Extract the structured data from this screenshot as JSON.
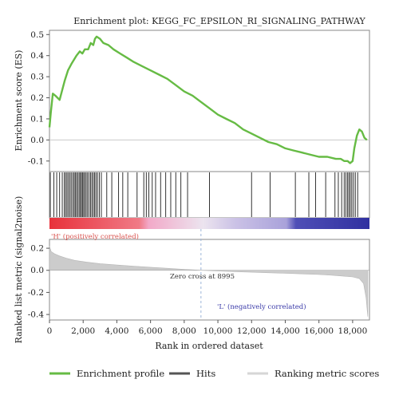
{
  "chart_data": {
    "type": "line",
    "title": "Enrichment plot: KEGG_FC_EPSILON_RI_SIGNALING_PATHWAY",
    "xlabel": "Rank in ordered dataset",
    "xlim": [
      0,
      19000
    ],
    "xticks": [
      "0",
      "2,000",
      "4,000",
      "6,000",
      "8,000",
      "10,000",
      "12,000",
      "14,000",
      "16,000",
      "18,000"
    ],
    "xtick_values": [
      0,
      2000,
      4000,
      6000,
      8000,
      10000,
      12000,
      14000,
      16000,
      18000
    ],
    "es": {
      "ylabel": "Enrichment score (ES)",
      "ylim": [
        -0.15,
        0.52
      ],
      "yticks": [
        "0.5",
        "0.4",
        "0.3",
        "0.2",
        "0.1",
        "0.0",
        "-0.1"
      ],
      "ytick_values": [
        0.5,
        0.4,
        0.3,
        0.2,
        0.1,
        0.0,
        -0.1
      ],
      "color": "#66bb44",
      "x": [
        0,
        80,
        200,
        350,
        600,
        800,
        900,
        1100,
        1300,
        1450,
        1600,
        1800,
        1950,
        2100,
        2300,
        2450,
        2600,
        2700,
        2800,
        3000,
        3200,
        3500,
        3800,
        4200,
        4600,
        5000,
        5500,
        6000,
        6500,
        7000,
        7500,
        8000,
        8500,
        9000,
        9500,
        10000,
        10500,
        11000,
        11500,
        12000,
        12500,
        13000,
        13500,
        14000,
        14500,
        15000,
        15500,
        16000,
        16500,
        17000,
        17300,
        17500,
        17700,
        17850,
        18000,
        18100,
        18250,
        18400,
        18550,
        18700,
        18850
      ],
      "y": [
        0.06,
        0.13,
        0.22,
        0.21,
        0.19,
        0.25,
        0.28,
        0.33,
        0.36,
        0.38,
        0.4,
        0.42,
        0.41,
        0.43,
        0.43,
        0.46,
        0.45,
        0.48,
        0.49,
        0.48,
        0.46,
        0.45,
        0.43,
        0.41,
        0.39,
        0.37,
        0.35,
        0.33,
        0.31,
        0.29,
        0.26,
        0.23,
        0.21,
        0.18,
        0.15,
        0.12,
        0.1,
        0.08,
        0.05,
        0.03,
        0.01,
        -0.01,
        -0.02,
        -0.04,
        -0.05,
        -0.06,
        -0.07,
        -0.08,
        -0.08,
        -0.09,
        -0.09,
        -0.1,
        -0.1,
        -0.11,
        -0.1,
        -0.04,
        0.02,
        0.05,
        0.04,
        0.01,
        0.0
      ]
    },
    "hits": [
      50,
      260,
      430,
      600,
      760,
      880,
      960,
      1040,
      1120,
      1210,
      1290,
      1380,
      1460,
      1530,
      1600,
      1680,
      1760,
      1830,
      1900,
      1960,
      2030,
      2100,
      2180,
      2260,
      2350,
      2440,
      2520,
      2600,
      2680,
      2760,
      2850,
      2960,
      3080,
      3400,
      3700,
      4100,
      4350,
      4650,
      5200,
      5600,
      5750,
      5900,
      6100,
      6300,
      6600,
      6900,
      7200,
      7500,
      7800,
      8200,
      9500,
      12000,
      13100,
      14600,
      15400,
      15800,
      16400,
      16950,
      17150,
      17350,
      17500,
      17600,
      17700,
      17780,
      17860,
      17950,
      18050,
      18160,
      18300
    ],
    "labels": {
      "positive": "'H' (positively correlated)",
      "negative": "'L' (negatively correlated)",
      "zero_cross": "Zero cross at 8995"
    },
    "metric": {
      "ylabel": "Ranked list metric (signal2noise)",
      "ylim": [
        -0.45,
        0.28
      ],
      "yticks": [
        "0.2",
        "0.0",
        "-0.2",
        "-0.4"
      ],
      "ytick_values": [
        0.2,
        0.0,
        -0.2,
        -0.4
      ],
      "x": [
        0,
        100,
        300,
        600,
        1000,
        1500,
        2200,
        3000,
        4000,
        5000,
        6000,
        7000,
        8000,
        8995,
        10000,
        11000,
        12000,
        13000,
        14000,
        15000,
        16000,
        16800,
        17400,
        18000,
        18400,
        18650,
        18800,
        18900
      ],
      "y": [
        0.22,
        0.17,
        0.15,
        0.13,
        0.11,
        0.09,
        0.075,
        0.06,
        0.048,
        0.038,
        0.028,
        0.018,
        0.009,
        0.0,
        -0.006,
        -0.012,
        -0.017,
        -0.022,
        -0.027,
        -0.032,
        -0.038,
        -0.045,
        -0.052,
        -0.06,
        -0.075,
        -0.12,
        -0.25,
        -0.42
      ]
    },
    "legend": [
      {
        "name": "Enrichment profile",
        "color": "#66bb44",
        "kind": "line"
      },
      {
        "name": "Hits",
        "color": "#555555",
        "kind": "line"
      },
      {
        "name": "Ranking metric scores",
        "color": "#d6d6d6",
        "kind": "line"
      }
    ]
  }
}
